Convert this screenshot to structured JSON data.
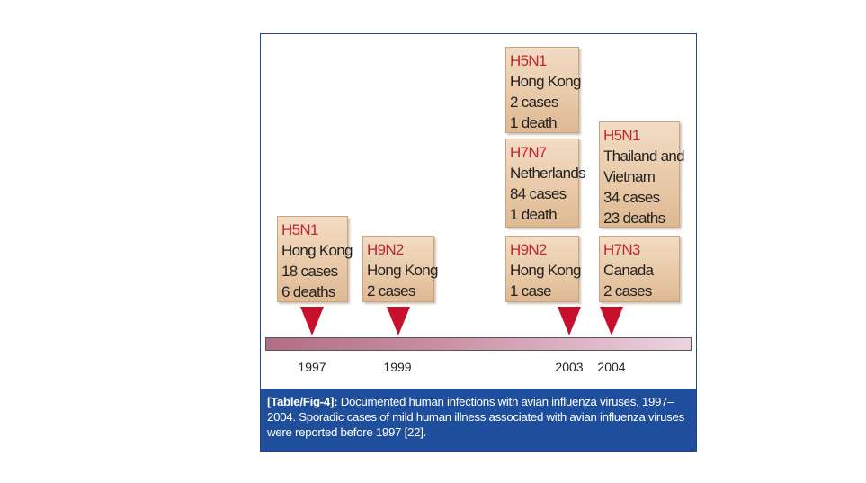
{
  "events": [
    {
      "id": "h5n1-1997",
      "strain": "H5N1",
      "location": "Hong Kong",
      "cases": "18 cases",
      "deaths": "6 deaths"
    },
    {
      "id": "h9n2-1999",
      "strain": "H9N2",
      "location": "Hong Kong",
      "cases": "2 cases"
    },
    {
      "id": "h5n1-2003",
      "strain": "H5N1",
      "location": "Hong Kong",
      "cases": "2 cases",
      "deaths": "1 death"
    },
    {
      "id": "h7n7-2003",
      "strain": "H7N7",
      "location": "Netherlands",
      "cases": "84 cases",
      "deaths": "1 death"
    },
    {
      "id": "h9n2-2003",
      "strain": "H9N2",
      "location": "Hong Kong",
      "cases": "1 case"
    },
    {
      "id": "h5n1-2004",
      "strain": "H5N1",
      "location_line1": "Thailand and",
      "location_line2": "Vietnam",
      "cases": "34 cases",
      "deaths": "23 deaths"
    },
    {
      "id": "h7n3-2004",
      "strain": "H7N3",
      "location": "Canada",
      "cases": "2 cases"
    }
  ],
  "years": [
    "1997",
    "1999",
    "2003",
    "2004"
  ],
  "caption": {
    "label": "[Table/Fig-4]:",
    "text": " Documented human infections with avian influenza viruses, 1997–2004. Sporadic cases of mild human illness associated with avian influenza viruses were reported before 1997 [22]."
  },
  "colors": {
    "strain": "#c0282e",
    "marker": "#c8102e",
    "caption_bg": "#1f4f9c",
    "box_bg": "#e8c8a6"
  }
}
